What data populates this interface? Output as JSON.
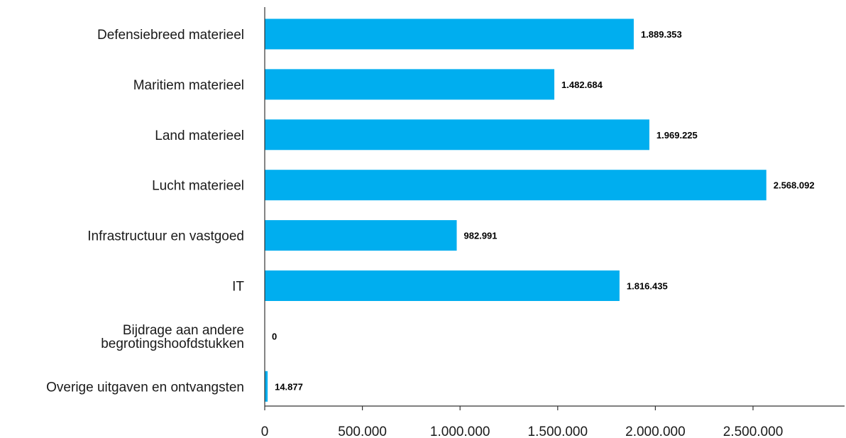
{
  "chart_data": {
    "type": "bar",
    "orientation": "horizontal",
    "categories": [
      [
        "Defensiebreed materieel"
      ],
      [
        "Maritiem materieel"
      ],
      [
        "Land materieel"
      ],
      [
        "Lucht materieel"
      ],
      [
        "Infrastructuur en vastgoed"
      ],
      [
        "IT"
      ],
      [
        "Bijdrage aan andere",
        "begrotingshoofdstukken"
      ],
      [
        "Overige uitgaven en ontvangsten"
      ]
    ],
    "values": [
      1889353,
      1482684,
      1969225,
      2568092,
      982991,
      1816435,
      0,
      14877
    ],
    "value_labels": [
      "1.889.353",
      "1.482.684",
      "1.969.225",
      "2.568.092",
      "982.991",
      "1.816.435",
      "0",
      "14.877"
    ],
    "xlim": [
      0,
      2950000
    ],
    "xticks": [
      0,
      500000,
      1000000,
      1500000,
      2000000,
      2500000
    ],
    "xtick_labels": [
      "0",
      "500.000",
      "1.000.000",
      "1.500.000",
      "2.000.000",
      "2.500.000"
    ],
    "bar_color": "#00AEEF",
    "axis_color": "#333333",
    "grid": false,
    "legend": "none",
    "title": "",
    "xlabel": "",
    "ylabel": ""
  }
}
